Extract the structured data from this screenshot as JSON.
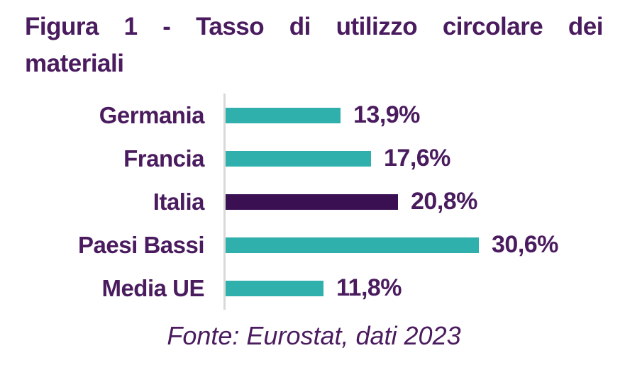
{
  "figure": {
    "title_line1": "Figura 1 - Tasso di utilizzo circolare dei",
    "title_line2": "materiali",
    "title_full": "Figura 1 - Tasso di utilizzo circolare dei materiali",
    "source": "Fonte: Eurostat, dati 2023"
  },
  "colors": {
    "accent_teal": "#2FB0AD",
    "highlight_purple": "#3B1053",
    "text_purple": "#4A1B5E",
    "axis_gray": "#D9D9D9"
  },
  "chart_data": {
    "type": "bar",
    "orientation": "horizontal",
    "title": "Figura 1 - Tasso di utilizzo circolare dei materiali",
    "categories": [
      "Germania",
      "Francia",
      "Italia",
      "Paesi Bassi",
      "Media UE"
    ],
    "values": [
      13.9,
      17.6,
      20.8,
      30.6,
      11.8
    ],
    "value_labels": [
      "13,9%",
      "17,6%",
      "20,8%",
      "30,6%",
      "11,8%"
    ],
    "unit": "%",
    "highlighted_category": "Italia",
    "xlim": [
      0,
      33
    ],
    "grid": false,
    "legend": false,
    "annotation": "Fonte: Eurostat, dati 2023"
  }
}
